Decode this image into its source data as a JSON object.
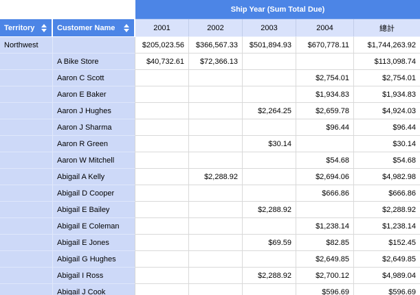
{
  "pivot": {
    "column_field_header": "Ship Year (Sum Total Due)",
    "row_fields": [
      {
        "label": "Territory",
        "sort_icon": "up-down-arrows"
      },
      {
        "label": "Customer Name",
        "sort_icon": "up-down-arrows"
      }
    ],
    "column_headers": [
      "2001",
      "2002",
      "2003",
      "2004",
      "總計"
    ],
    "colors": {
      "header_blue": "#4c85e6",
      "year_header_bg": "#d9e2fb",
      "row_label_bg": "#cdd9f8",
      "grid_line": "#d9d9d9",
      "header_text": "#ffffff"
    },
    "rows": [
      {
        "territory": "Northwest",
        "customer": "",
        "values": [
          "$205,023.56",
          "$366,567.33",
          "$501,894.93",
          "$670,778.11",
          "$1,744,263.92"
        ]
      },
      {
        "territory": "",
        "customer": "A Bike Store",
        "values": [
          "$40,732.61",
          "$72,366.13",
          "",
          "",
          "$113,098.74"
        ]
      },
      {
        "territory": "",
        "customer": "Aaron C Scott",
        "values": [
          "",
          "",
          "",
          "$2,754.01",
          "$2,754.01"
        ]
      },
      {
        "territory": "",
        "customer": "Aaron E Baker",
        "values": [
          "",
          "",
          "",
          "$1,934.83",
          "$1,934.83"
        ]
      },
      {
        "territory": "",
        "customer": "Aaron J Hughes",
        "values": [
          "",
          "",
          "$2,264.25",
          "$2,659.78",
          "$4,924.03"
        ]
      },
      {
        "territory": "",
        "customer": "Aaron J Sharma",
        "values": [
          "",
          "",
          "",
          "$96.44",
          "$96.44"
        ]
      },
      {
        "territory": "",
        "customer": "Aaron R Green",
        "values": [
          "",
          "",
          "$30.14",
          "",
          "$30.14"
        ]
      },
      {
        "territory": "",
        "customer": "Aaron W Mitchell",
        "values": [
          "",
          "",
          "",
          "$54.68",
          "$54.68"
        ]
      },
      {
        "territory": "",
        "customer": "Abigail A Kelly",
        "values": [
          "",
          "$2,288.92",
          "",
          "$2,694.06",
          "$4,982.98"
        ]
      },
      {
        "territory": "",
        "customer": "Abigail D Cooper",
        "values": [
          "",
          "",
          "",
          "$666.86",
          "$666.86"
        ]
      },
      {
        "territory": "",
        "customer": "Abigail E Bailey",
        "values": [
          "",
          "",
          "$2,288.92",
          "",
          "$2,288.92"
        ]
      },
      {
        "territory": "",
        "customer": "Abigail E Coleman",
        "values": [
          "",
          "",
          "",
          "$1,238.14",
          "$1,238.14"
        ]
      },
      {
        "territory": "",
        "customer": "Abigail E Jones",
        "values": [
          "",
          "",
          "$69.59",
          "$82.85",
          "$152.45"
        ]
      },
      {
        "territory": "",
        "customer": "Abigail G Hughes",
        "values": [
          "",
          "",
          "",
          "$2,649.85",
          "$2,649.85"
        ]
      },
      {
        "territory": "",
        "customer": "Abigail I Ross",
        "values": [
          "",
          "",
          "$2,288.92",
          "$2,700.12",
          "$4,989.04"
        ]
      },
      {
        "territory": "",
        "customer": "Abigail J Cook",
        "values": [
          "",
          "",
          "",
          "$596.69",
          "$596.69"
        ]
      }
    ]
  }
}
